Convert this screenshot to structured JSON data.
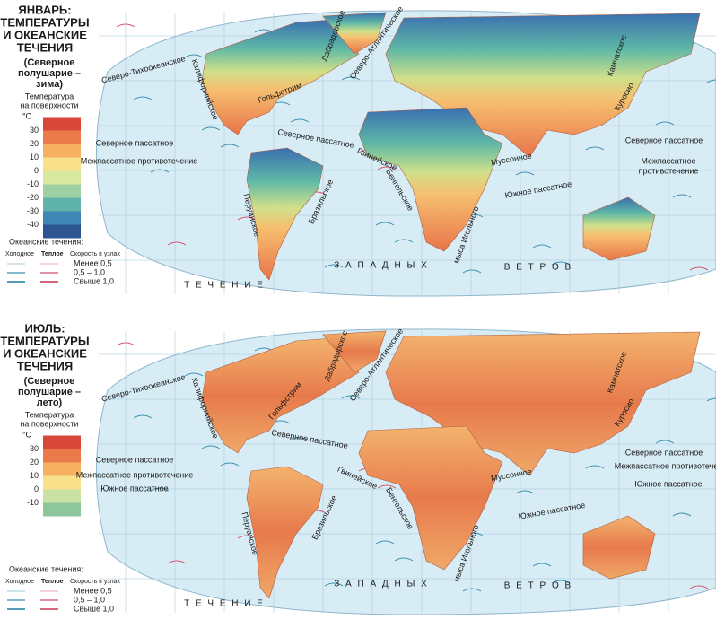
{
  "maps": [
    {
      "title": [
        "ЯНВАРЬ:",
        "ТЕМПЕРАТУРЫ",
        "И ОКЕАНСКИЕ",
        "ТЕЧЕНИЯ"
      ],
      "subtitle": [
        "(Северное",
        "полушарие –",
        "зима)"
      ],
      "temperature_legend": {
        "title": [
          "Температура",
          "на поверхности"
        ],
        "unit": "°C",
        "ticks": [
          30,
          20,
          10,
          0,
          -10,
          -20,
          -30,
          -40
        ]
      },
      "currents_legend": {
        "title": "Океанские течения:",
        "cold": "Холодное",
        "warm": "Теплое",
        "speed": "Скорость в узлах",
        "speeds": [
          "Менее 0,5",
          "0,5 – 1,0",
          "Свыше 1,0"
        ]
      },
      "labels": [
        "Северо-Тихоокеанское",
        "Калифорнийское",
        "Лабрадорское",
        "Северо-Атлантическое",
        "Камчатское",
        "Гольфстрим",
        "Куросио",
        "Северное пассатное",
        "Северное пассатное",
        "Северное пассатное",
        "Межпассатное противотечение",
        "Межпассатное",
        "противотечение",
        "Гвинейское",
        "Муссонное",
        "Перуанское",
        "Бразильское",
        "Бенгельское",
        "Южное пассатное",
        "мыса Игольного"
      ],
      "westerlies": [
        "Т Е Ч Е Н И Е",
        "З А П А Д Н Ы Х",
        "В Е Т Р О В"
      ]
    },
    {
      "title": [
        "ИЮЛЬ:",
        "ТЕМПЕРАТУРЫ",
        "И ОКЕАНСКИЕ",
        "ТЕЧЕНИЯ"
      ],
      "subtitle": [
        "(Северное",
        "полушарие –",
        "лето)"
      ],
      "temperature_legend": {
        "title": [
          "Температура",
          "на поверхности"
        ],
        "unit": "°C",
        "ticks": [
          30,
          20,
          10,
          0,
          -10
        ]
      },
      "currents_legend": {
        "title": "Океанские течения:",
        "cold": "Холодное",
        "warm": "Теплое",
        "speed": "Скорость в узлах",
        "speeds": [
          "Менее 0,5",
          "0,5 – 1,0",
          "Свыше 1,0"
        ]
      },
      "labels": [
        "Северо-Тихоокеанское",
        "Калифорнийское",
        "Лабрадорское",
        "Северо-Атлантическое",
        "Камчатское",
        "Гольфстрим",
        "Куросио",
        "Северное пассатное",
        "Северное пассатное",
        "Северное пассатное",
        "Межпассатное противотечение",
        "Межпассатное противотечение",
        "Южное пассатное",
        "Гвинейское",
        "Муссонное",
        "Перуанское",
        "Бразильское",
        "Бенгельское",
        "Южное пассатное",
        "Южное пассатное",
        "мыса Игольного"
      ],
      "westerlies": [
        "Т Е Ч Е Н И Е",
        "З А П А Д Н Ы Х",
        "В Е Т Р О В"
      ]
    }
  ]
}
